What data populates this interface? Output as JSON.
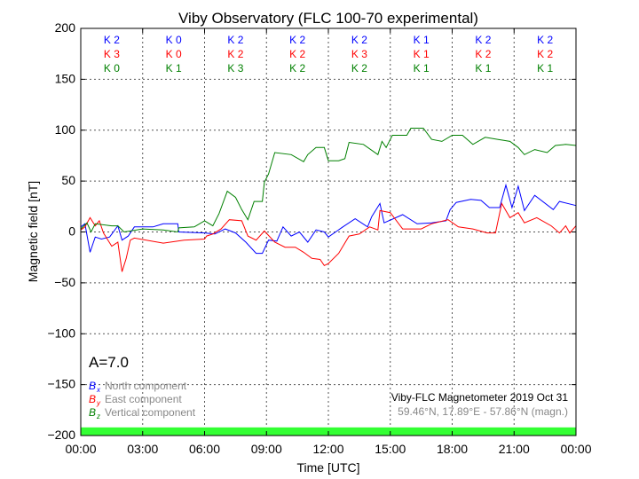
{
  "chart_data": {
    "type": "line",
    "title": "Viby Observatory (FLC 100-70 experimental)",
    "xlabel": "Time [UTC]",
    "ylabel": "Magnetic field [nT]",
    "xlim": [
      0,
      24
    ],
    "ylim": [
      -200,
      200
    ],
    "grid": true,
    "x_tick_labels": [
      "00:00",
      "03:00",
      "06:00",
      "09:00",
      "12:00",
      "15:00",
      "18:00",
      "21:00",
      "00:00"
    ],
    "y_ticks": [
      200,
      150,
      100,
      50,
      0,
      -50,
      -100,
      -150,
      -200
    ],
    "y_tick_labels": [
      "200",
      "150",
      "100",
      "50",
      "0",
      "−50",
      "−100",
      "−150",
      "−200"
    ],
    "activity_bar": {
      "from": -200,
      "to": -192,
      "color": "#33ff33"
    },
    "a_index": "A=7.0",
    "k_indices": [
      {
        "color": "#0000ff",
        "labels": [
          "K 2",
          "K 0",
          "K 2",
          "K 2",
          "K 2",
          "K 1",
          "K 2",
          "K 2"
        ]
      },
      {
        "color": "#ff0000",
        "labels": [
          "K 3",
          "K 0",
          "K 2",
          "K 2",
          "K 3",
          "K 1",
          "K 2",
          "K 2"
        ]
      },
      {
        "color": "#008000",
        "labels": [
          "K 0",
          "K 1",
          "K 3",
          "K 2",
          "K 2",
          "K 1",
          "K 1",
          "K 1"
        ]
      }
    ],
    "legend_position": "bottom-left",
    "station_label": "Viby-FLC Magnetometer 2019 Oct 31",
    "station_coords": "59.46°N, 17.89°E - 57.86°N (magn.)",
    "series": [
      {
        "name": "North component",
        "symbol": "B",
        "sub": "x",
        "color": "#0000ff",
        "x": [
          0,
          0.2,
          0.45,
          0.7,
          1,
          1.4,
          1.8,
          2.0,
          2.3,
          2.6,
          3.5,
          4,
          4.7,
          4.75,
          6,
          6.5,
          7,
          7.5,
          8,
          8.5,
          8.8,
          9.1,
          9.5,
          9.8,
          10.2,
          10.6,
          11,
          11.4,
          11.8,
          12,
          12.7,
          13.3,
          13.9,
          14.1,
          14.5,
          14.7,
          15.6,
          16.3,
          17.0,
          17.7,
          17.9,
          18.2,
          18.9,
          19.4,
          19.8,
          20.3,
          20.6,
          20.9,
          21.2,
          21.5,
          22.0,
          22.9,
          23.2,
          24
        ],
        "y": [
          5,
          8,
          -20,
          -5,
          -7,
          -5,
          6,
          -8,
          -4,
          5,
          5,
          8,
          8,
          0,
          -1,
          -2,
          3,
          -1,
          -10,
          -21,
          -21,
          -8,
          -9,
          5,
          -4,
          0,
          -10,
          2,
          0,
          -5,
          5,
          13,
          5,
          15,
          28,
          9,
          17,
          8,
          9,
          11,
          22,
          29,
          32,
          31,
          24,
          24,
          46,
          24,
          45,
          21,
          36,
          22,
          30,
          26
        ]
      },
      {
        "name": "East component",
        "symbol": "B",
        "sub": "y",
        "color": "#ff0000",
        "x": [
          0,
          0.2,
          0.45,
          0.7,
          0.9,
          1.1,
          1.5,
          1.8,
          2.0,
          2.2,
          2.4,
          2.6,
          4,
          5,
          6,
          6.1,
          6.4,
          6.8,
          7.2,
          7.8,
          8.1,
          8.5,
          8.9,
          9.4,
          9.9,
          10.4,
          10.8,
          11.2,
          11.6,
          11.8,
          12,
          12.5,
          13,
          13.5,
          14,
          14.4,
          14.5,
          15,
          15.6,
          16.5,
          17,
          17.8,
          18.3,
          19,
          19.7,
          20.1,
          20.4,
          20.8,
          21.2,
          21.5,
          22.1,
          22.8,
          23.2,
          23.5,
          23.7,
          24
        ],
        "y": [
          2,
          5,
          14,
          6,
          11,
          -1,
          -14,
          -10,
          -39,
          -26,
          -8,
          -6,
          -11,
          -8,
          -7,
          -4,
          -2,
          3,
          12,
          11,
          -4,
          -8,
          1,
          -10,
          -15,
          -15,
          -20,
          -26,
          -27,
          -33,
          -31,
          -21,
          -4,
          -2,
          5,
          2,
          21,
          19,
          3,
          3,
          8,
          12,
          5,
          3,
          -1,
          -1,
          28,
          14,
          19,
          9,
          14,
          6,
          -1,
          6,
          -1,
          6
        ]
      },
      {
        "name": "Vertical component",
        "symbol": "B",
        "sub": "z",
        "color": "#008000",
        "x": [
          0,
          0.3,
          0.5,
          0.7,
          1.5,
          1.8,
          2.1,
          3,
          4,
          4.7,
          4.75,
          5.5,
          6,
          6.4,
          6.7,
          7.1,
          7.5,
          7.8,
          8.1,
          8.4,
          8.8,
          8.9,
          9.1,
          9.4,
          10.2,
          10.8,
          11,
          11.4,
          11.8,
          12,
          12.5,
          12.8,
          13.0,
          13.7,
          14.4,
          14.6,
          14.8,
          15.1,
          15.8,
          16,
          16.6,
          17,
          17.5,
          18,
          18.5,
          19,
          19.6,
          20.2,
          20.8,
          21.2,
          21.5,
          22,
          22.6,
          23,
          23.5,
          24
        ],
        "y": [
          3,
          9,
          0,
          8,
          6,
          6,
          0,
          3,
          2,
          0,
          4,
          5,
          11,
          6,
          18,
          40,
          34,
          22,
          12,
          30,
          30,
          49,
          57,
          78,
          76,
          69,
          76,
          83,
          83,
          70,
          70,
          72,
          88,
          86,
          76,
          89,
          83,
          95,
          95,
          102,
          102,
          91,
          89,
          95,
          95,
          86,
          93,
          91,
          89,
          83,
          76,
          81,
          78,
          85,
          86,
          85
        ]
      }
    ]
  }
}
